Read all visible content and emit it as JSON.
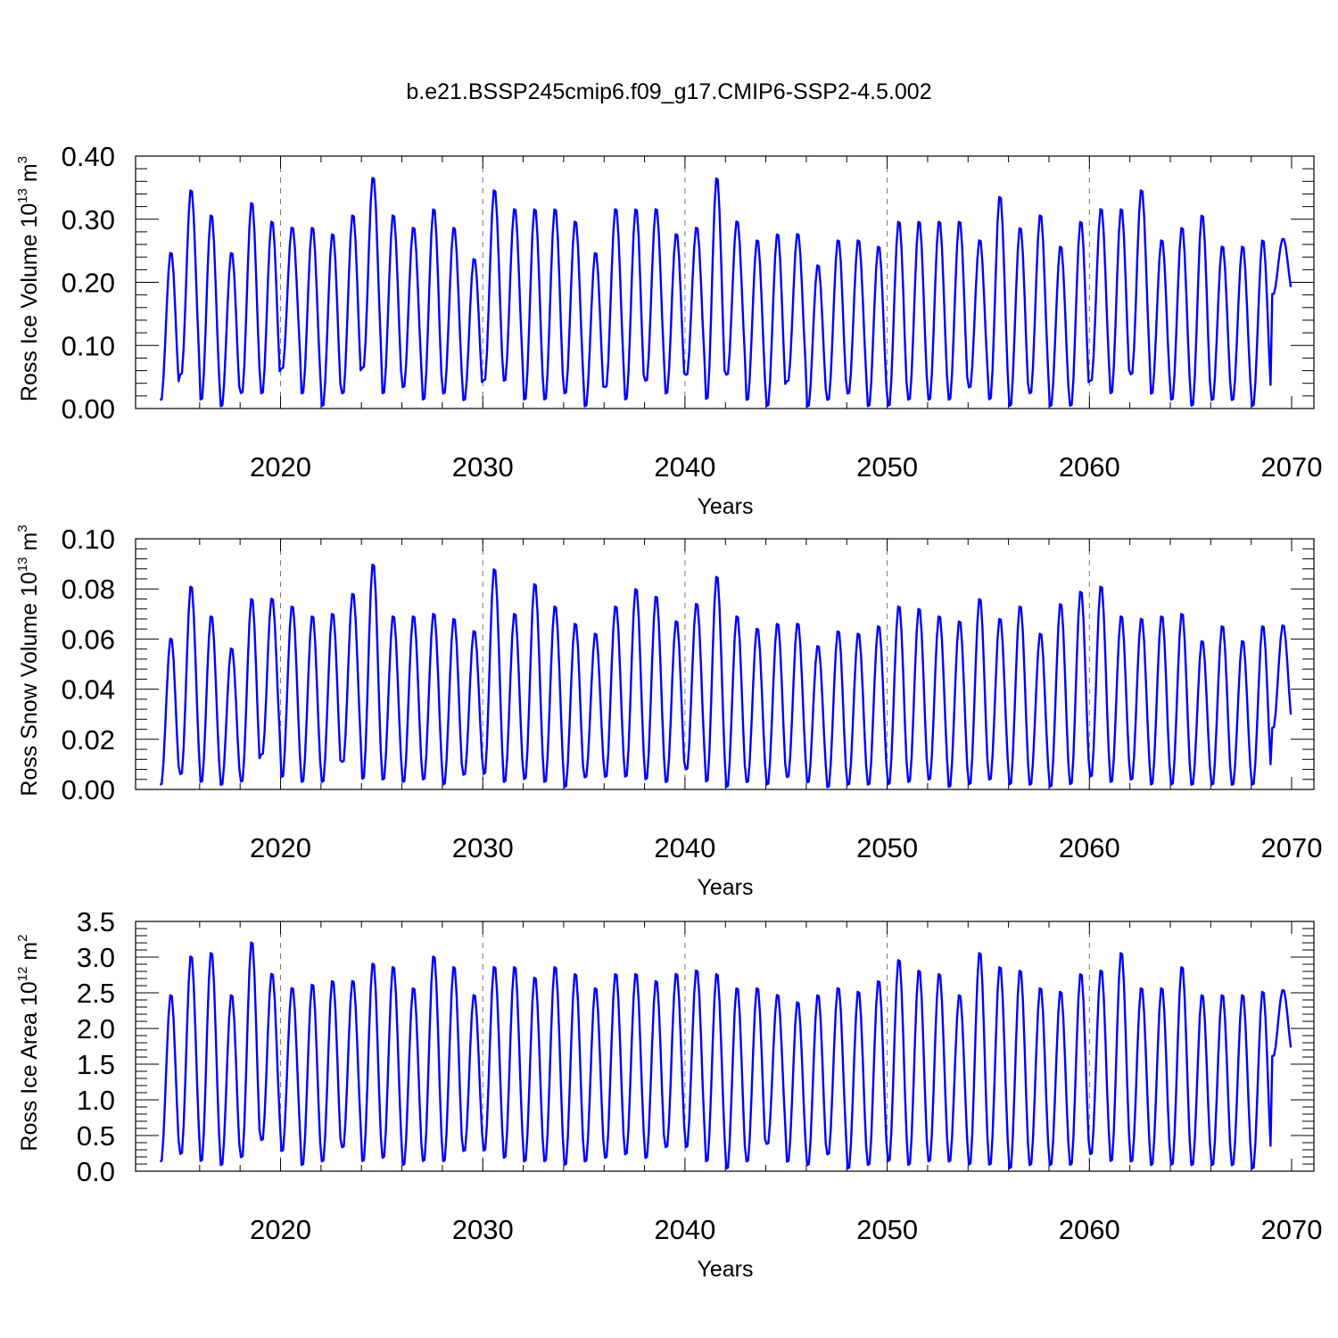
{
  "title": "b.e21.BSSP245cmip6.f09_g17.CMIP6-SSP2-4.5.002",
  "line_color": "#0000ff",
  "chart_data": [
    {
      "type": "line",
      "ylabel": "Ross Ice Volume 10",
      "ylabel_exp": "13",
      "ylabel_unit": " m",
      "ylabel_unit_exp": "3",
      "xlabel": "Years",
      "xlim": [
        2014,
        2070
      ],
      "ylim": [
        0,
        0.4
      ],
      "x_ticks": [
        2020,
        2030,
        2040,
        2050,
        2060,
        2070
      ],
      "x_tick_labels": [
        "2020",
        "2030",
        "2040",
        "2050",
        "2060",
        "2070"
      ],
      "y_ticks": [
        0,
        0.1,
        0.2,
        0.3,
        0.4
      ],
      "y_tick_labels": [
        "0.00",
        "0.10",
        "0.20",
        "0.30",
        "0.40"
      ],
      "grid": "dashed vertical at major ticks",
      "series": [
        {
          "peak_year_frac": 0.72,
          "min_year_frac": 0.08,
          "annual_max": [
            0.25,
            0.35,
            0.31,
            0.25,
            0.33,
            0.3,
            0.29,
            0.29,
            0.28,
            0.31,
            0.37,
            0.31,
            0.29,
            0.32,
            0.29,
            0.24,
            0.35,
            0.32,
            0.32,
            0.32,
            0.3,
            0.25,
            0.32,
            0.32,
            0.32,
            0.28,
            0.29,
            0.37,
            0.3,
            0.27,
            0.28,
            0.28,
            0.23,
            0.27,
            0.27,
            0.26,
            0.3,
            0.3,
            0.3,
            0.3,
            0.27,
            0.34,
            0.29,
            0.31,
            0.26,
            0.3,
            0.32,
            0.32,
            0.35,
            0.27,
            0.29,
            0.31,
            0.26,
            0.26,
            0.27,
            0.27
          ],
          "annual_min": [
            0.01,
            0.05,
            0.01,
            0.0,
            0.02,
            0.02,
            0.06,
            0.02,
            0.0,
            0.02,
            0.06,
            0.02,
            0.03,
            0.01,
            0.02,
            0.01,
            0.04,
            0.04,
            0.01,
            0.01,
            0.02,
            0.0,
            0.03,
            0.01,
            0.04,
            0.02,
            0.05,
            0.01,
            0.05,
            0.01,
            0.0,
            0.04,
            0.0,
            0.01,
            0.02,
            0.0,
            0.0,
            0.01,
            0.01,
            0.01,
            0.03,
            0.01,
            0.0,
            0.02,
            0.0,
            0.0,
            0.04,
            0.02,
            0.05,
            0.02,
            0.01,
            0.0,
            0.01,
            0.01,
            0.0,
            0.18
          ]
        }
      ]
    },
    {
      "type": "line",
      "ylabel": "Ross Snow Volume 10",
      "ylabel_exp": "13",
      "ylabel_unit": " m",
      "ylabel_unit_exp": "3",
      "xlabel": "Years",
      "xlim": [
        2014,
        2070
      ],
      "ylim": [
        0,
        0.1
      ],
      "x_ticks": [
        2020,
        2030,
        2040,
        2050,
        2060,
        2070
      ],
      "x_tick_labels": [
        "2020",
        "2030",
        "2040",
        "2050",
        "2060",
        "2070"
      ],
      "y_ticks": [
        0,
        0.02,
        0.04,
        0.06,
        0.08,
        0.1
      ],
      "y_tick_labels": [
        "0.00",
        "0.02",
        "0.04",
        "0.06",
        "0.08",
        "0.10"
      ],
      "grid": "dashed vertical at major ticks",
      "series": [
        {
          "peak_year_frac": 0.72,
          "min_year_frac": 0.08,
          "annual_max": [
            0.061,
            0.082,
            0.07,
            0.057,
            0.077,
            0.077,
            0.074,
            0.07,
            0.071,
            0.079,
            0.091,
            0.07,
            0.07,
            0.071,
            0.069,
            0.064,
            0.089,
            0.071,
            0.083,
            0.074,
            0.067,
            0.063,
            0.074,
            0.081,
            0.078,
            0.068,
            0.075,
            0.086,
            0.07,
            0.065,
            0.067,
            0.067,
            0.058,
            0.064,
            0.063,
            0.066,
            0.074,
            0.073,
            0.07,
            0.068,
            0.077,
            0.069,
            0.074,
            0.063,
            0.075,
            0.08,
            0.082,
            0.07,
            0.069,
            0.07,
            0.071,
            0.06,
            0.066,
            0.06,
            0.066,
            0.066
          ],
          "annual_min": [
            0.001,
            0.005,
            0.002,
            0.001,
            0.002,
            0.013,
            0.004,
            0.002,
            0.002,
            0.01,
            0.003,
            0.003,
            0.002,
            0.003,
            0.001,
            0.005,
            0.005,
            0.002,
            0.003,
            0.002,
            0.0,
            0.004,
            0.004,
            0.004,
            0.003,
            0.002,
            0.007,
            0.002,
            0.0,
            0.002,
            0.001,
            0.004,
            0.002,
            0.0,
            0.001,
            0.001,
            0.001,
            0.002,
            0.003,
            0.0,
            0.001,
            0.003,
            0.001,
            0.001,
            0.0,
            0.001,
            0.004,
            0.002,
            0.003,
            0.001,
            0.001,
            0.001,
            0.001,
            0.001,
            0.001,
            0.024
          ]
        }
      ]
    },
    {
      "type": "line",
      "ylabel": "Ross Ice Area 10",
      "ylabel_exp": "12",
      "ylabel_unit": " m",
      "ylabel_unit_exp": "2",
      "xlabel": "Years",
      "xlim": [
        2014,
        2070
      ],
      "ylim": [
        0,
        3.5
      ],
      "x_ticks": [
        2020,
        2030,
        2040,
        2050,
        2060,
        2070
      ],
      "x_tick_labels": [
        "2020",
        "2030",
        "2040",
        "2050",
        "2060",
        "2070"
      ],
      "y_ticks": [
        0,
        0.5,
        1,
        1.5,
        2,
        2.5,
        3,
        3.5
      ],
      "y_tick_labels": [
        "0.0",
        "0.5",
        "1.0",
        "1.5",
        "2.0",
        "2.5",
        "3.0",
        "3.5"
      ],
      "grid": "dashed vertical at major ticks",
      "series": [
        {
          "peak_year_frac": 0.72,
          "min_year_frac": 0.08,
          "annual_max": [
            2.5,
            3.05,
            3.1,
            2.5,
            3.25,
            2.8,
            2.6,
            2.65,
            2.7,
            2.7,
            2.95,
            2.9,
            2.6,
            3.05,
            2.9,
            2.5,
            2.9,
            2.9,
            2.75,
            2.9,
            2.8,
            2.6,
            2.8,
            2.8,
            2.7,
            2.8,
            2.85,
            2.8,
            2.6,
            2.6,
            2.5,
            2.4,
            2.5,
            2.6,
            2.55,
            2.7,
            3.0,
            2.85,
            2.8,
            2.5,
            3.1,
            2.9,
            2.85,
            2.6,
            2.55,
            2.8,
            2.85,
            3.1,
            2.6,
            2.6,
            2.9,
            2.5,
            2.5,
            2.5,
            2.55,
            2.55
          ],
          "annual_min": [
            0.1,
            0.2,
            0.1,
            0.05,
            0.15,
            0.4,
            0.25,
            0.05,
            0.1,
            0.3,
            0.1,
            0.15,
            0.05,
            0.1,
            0.1,
            0.25,
            0.25,
            0.15,
            0.1,
            0.1,
            0.05,
            0.1,
            0.15,
            0.2,
            0.15,
            0.3,
            0.3,
            0.1,
            0.0,
            0.1,
            0.35,
            0.1,
            0.05,
            0.2,
            0.0,
            0.05,
            0.1,
            0.05,
            0.1,
            0.1,
            0.05,
            0.05,
            0.0,
            0.05,
            0.05,
            0.05,
            0.2,
            0.1,
            0.1,
            0.05,
            0.05,
            0.05,
            0.05,
            0.05,
            0.0,
            1.6
          ]
        }
      ]
    }
  ]
}
